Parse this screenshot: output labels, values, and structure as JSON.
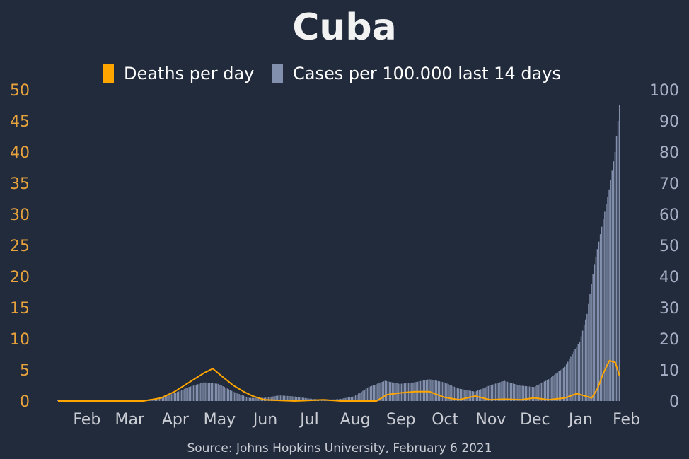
{
  "chart_data": {
    "type": "bar+line",
    "title": "Cuba",
    "source": "Source: Johns Hopkins University, February 6 2021",
    "legend": [
      "Deaths per day",
      "Cases per 100.000 last 14 days"
    ],
    "x_ticks": [
      "Feb",
      "Mar",
      "Apr",
      "May",
      "Jun",
      "Jul",
      "Aug",
      "Sep",
      "Oct",
      "Nov",
      "Dec",
      "Jan",
      "Feb"
    ],
    "x_dates": [
      "2020-02-01",
      "2020-03-01",
      "2020-04-01",
      "2020-05-01",
      "2020-06-01",
      "2020-07-01",
      "2020-08-01",
      "2020-09-01",
      "2020-10-01",
      "2020-11-01",
      "2020-12-01",
      "2021-01-01",
      "2021-02-01"
    ],
    "x_range": [
      "2020-01-22",
      "2021-02-06"
    ],
    "y_left": {
      "ticks": [
        "0",
        "5",
        "10",
        "15",
        "20",
        "25",
        "30",
        "35",
        "40",
        "45",
        "50"
      ],
      "range": [
        0,
        50
      ]
    },
    "y_right": {
      "ticks": [
        "0",
        "10",
        "20",
        "30",
        "40",
        "50",
        "60",
        "70",
        "80",
        "90",
        "100"
      ],
      "range": [
        0,
        100
      ]
    },
    "colors": {
      "background": "#222b3c",
      "deaths": "#ffa500",
      "cases": "#8390ad",
      "left_axis": "#e8a33c",
      "right_axis": "#a6b0c6",
      "text": "#ffffff",
      "muted": "#c9ccd3"
    },
    "series": [
      {
        "name": "Cases per 100.000 last 14 days",
        "axis": "right",
        "points": [
          [
            "2020-01-22",
            0
          ],
          [
            "2020-03-10",
            0
          ],
          [
            "2020-03-20",
            0.3
          ],
          [
            "2020-03-31",
            1
          ],
          [
            "2020-04-10",
            2.5
          ],
          [
            "2020-04-20",
            4.5
          ],
          [
            "2020-04-30",
            6
          ],
          [
            "2020-05-10",
            5.5
          ],
          [
            "2020-05-20",
            3
          ],
          [
            "2020-05-31",
            1
          ],
          [
            "2020-06-10",
            1
          ],
          [
            "2020-06-20",
            1.8
          ],
          [
            "2020-06-30",
            1.5
          ],
          [
            "2020-07-10",
            0.8
          ],
          [
            "2020-07-20",
            0.4
          ],
          [
            "2020-07-31",
            0.6
          ],
          [
            "2020-08-10",
            1.5
          ],
          [
            "2020-08-20",
            4.5
          ],
          [
            "2020-08-31",
            6.5
          ],
          [
            "2020-09-10",
            5.5
          ],
          [
            "2020-09-20",
            6
          ],
          [
            "2020-09-30",
            7
          ],
          [
            "2020-10-10",
            6
          ],
          [
            "2020-10-20",
            4
          ],
          [
            "2020-10-31",
            3
          ],
          [
            "2020-11-10",
            5
          ],
          [
            "2020-11-20",
            6.5
          ],
          [
            "2020-11-30",
            5
          ],
          [
            "2020-12-10",
            4.5
          ],
          [
            "2020-12-20",
            7
          ],
          [
            "2020-12-31",
            11
          ],
          [
            "2021-01-05",
            15
          ],
          [
            "2021-01-10",
            19
          ],
          [
            "2021-01-15",
            28
          ],
          [
            "2021-01-20",
            44
          ],
          [
            "2021-01-25",
            56
          ],
          [
            "2021-01-30",
            68
          ],
          [
            "2021-02-03",
            80
          ],
          [
            "2021-02-06",
            95
          ]
        ]
      },
      {
        "name": "Deaths per day",
        "axis": "left",
        "points": [
          [
            "2020-01-22",
            0
          ],
          [
            "2020-03-20",
            0
          ],
          [
            "2020-04-01",
            0.5
          ],
          [
            "2020-04-10",
            1.5
          ],
          [
            "2020-04-20",
            3
          ],
          [
            "2020-04-30",
            4.5
          ],
          [
            "2020-05-06",
            5.2
          ],
          [
            "2020-05-12",
            4
          ],
          [
            "2020-05-20",
            2.5
          ],
          [
            "2020-05-27",
            1.5
          ],
          [
            "2020-06-02",
            0.8
          ],
          [
            "2020-06-10",
            0.2
          ],
          [
            "2020-06-20",
            0.1
          ],
          [
            "2020-07-01",
            0
          ],
          [
            "2020-07-20",
            0.2
          ],
          [
            "2020-08-01",
            0
          ],
          [
            "2020-08-25",
            0
          ],
          [
            "2020-09-01",
            1
          ],
          [
            "2020-09-10",
            1.3
          ],
          [
            "2020-09-20",
            1.5
          ],
          [
            "2020-09-30",
            1.5
          ],
          [
            "2020-10-10",
            0.6
          ],
          [
            "2020-10-20",
            0.2
          ],
          [
            "2020-10-31",
            0.8
          ],
          [
            "2020-11-10",
            0.2
          ],
          [
            "2020-11-20",
            0.3
          ],
          [
            "2020-12-01",
            0.2
          ],
          [
            "2020-12-10",
            0.5
          ],
          [
            "2020-12-20",
            0.2
          ],
          [
            "2020-12-31",
            0.5
          ],
          [
            "2021-01-08",
            1.2
          ],
          [
            "2021-01-18",
            0.5
          ],
          [
            "2021-01-22",
            2
          ],
          [
            "2021-01-26",
            4.5
          ],
          [
            "2021-01-30",
            6.5
          ],
          [
            "2021-02-03",
            6.2
          ],
          [
            "2021-02-06",
            4
          ]
        ]
      }
    ]
  }
}
